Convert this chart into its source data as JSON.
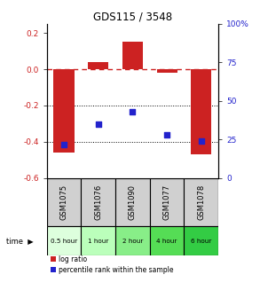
{
  "title": "GDS115 / 3548",
  "samples": [
    "GSM1075",
    "GSM1076",
    "GSM1090",
    "GSM1077",
    "GSM1078"
  ],
  "time_labels": [
    "0.5 hour",
    "1 hour",
    "2 hour",
    "4 hour",
    "6 hour"
  ],
  "log_ratios": [
    -0.46,
    0.04,
    0.15,
    -0.02,
    -0.47
  ],
  "percentile_ranks": [
    22,
    35,
    43,
    28,
    24
  ],
  "bar_color": "#cc2222",
  "dot_color": "#2222cc",
  "ylim_left": [
    -0.6,
    0.25
  ],
  "ylim_right": [
    0,
    100
  ],
  "left_ticks": [
    0.2,
    0.0,
    -0.2,
    -0.4,
    -0.6
  ],
  "right_ticks": [
    100,
    75,
    50,
    25,
    0
  ],
  "hline_red": 0.0,
  "hlines_black": [
    -0.2,
    -0.4
  ],
  "bg_color": "#ffffff",
  "sample_bg": "#d0d0d0",
  "time_bg_colors": [
    "#ddffdd",
    "#bbffbb",
    "#88ee88",
    "#55dd55",
    "#33cc44"
  ],
  "bar_width": 0.6
}
